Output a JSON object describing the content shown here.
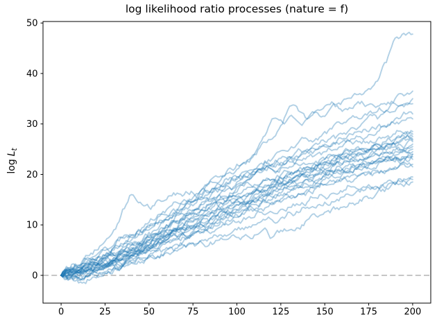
{
  "title": "log likelihood ratio processes (nature = f)",
  "chart_data": {
    "type": "line",
    "title": "log likelihood ratio processes (nature = f)",
    "xlabel": "",
    "ylabel": "log L_t",
    "ylabel_parts": {
      "pre": "log",
      "var": "L",
      "sub": "t"
    },
    "x_ticks": [
      0,
      25,
      50,
      75,
      100,
      125,
      150,
      175,
      200
    ],
    "y_ticks": [
      0,
      10,
      20,
      30,
      40,
      50
    ],
    "xlim": [
      -10.3,
      210.3
    ],
    "ylim": [
      -5.5,
      50.3
    ],
    "grid": false,
    "legend": "none",
    "line_color": "#1f77b4",
    "line_alpha": 0.35,
    "line_width": 1.9,
    "zero_line": {
      "y": 0,
      "style": "dashed",
      "color": "#b4b4b4"
    },
    "control_step": 10,
    "noise_amp": 0.6,
    "x_start": 0,
    "x_end": 200,
    "series": [
      {
        "seed": 101,
        "values": [
          0,
          1.5,
          3,
          5.5,
          8,
          10.5,
          13,
          15,
          17,
          19.5,
          22,
          24,
          31,
          31.5,
          31,
          33.5,
          34.5,
          36,
          38.5,
          47,
          47.8
        ]
      },
      {
        "seed": 202,
        "values": [
          0,
          0.5,
          2,
          3.5,
          6,
          8.5,
          11,
          13.5,
          16,
          18.5,
          21,
          24,
          27,
          33.5,
          31,
          31.5,
          32.5,
          34,
          33.5,
          35,
          36.5
        ]
      },
      {
        "seed": 303,
        "values": [
          0,
          1,
          2.5,
          4,
          5.5,
          7.5,
          10,
          12,
          14.5,
          17,
          19,
          21,
          23,
          25,
          27,
          28.5,
          30,
          31,
          32.5,
          34,
          35
        ]
      },
      {
        "seed": 404,
        "values": [
          0,
          -0.5,
          1,
          3,
          5,
          7,
          9,
          11,
          13,
          15,
          17.5,
          20,
          22,
          23.5,
          25,
          26.5,
          28,
          29.5,
          31,
          32.5,
          34
        ]
      },
      {
        "seed": 505,
        "values": [
          0,
          2,
          5,
          9,
          16,
          13.5,
          15,
          16,
          17,
          18,
          19.5,
          21,
          22,
          23.5,
          24.5,
          25.5,
          26.5,
          27.5,
          28.5,
          30,
          31
        ]
      },
      {
        "seed": 606,
        "values": [
          0,
          1,
          2,
          3,
          5,
          7,
          9.5,
          12,
          14,
          16,
          18,
          20,
          21.5,
          23,
          24.5,
          26,
          27,
          28.5,
          29.5,
          31,
          32
        ]
      },
      {
        "seed": 707,
        "values": [
          0,
          0.5,
          1.5,
          3,
          4.5,
          6,
          8,
          10,
          12,
          13.5,
          15,
          16.5,
          18,
          19.5,
          21,
          22.5,
          24,
          25,
          26,
          27,
          28
        ]
      },
      {
        "seed": 808,
        "values": [
          0,
          1,
          2.5,
          4,
          6,
          7.5,
          9,
          11,
          13,
          14.5,
          16,
          17.5,
          19,
          20,
          21.5,
          23,
          24,
          25,
          26,
          26.8,
          27.5
        ]
      },
      {
        "seed": 909,
        "values": [
          0,
          -1,
          0,
          1.5,
          3.5,
          5.5,
          7.5,
          9,
          11,
          13,
          15,
          16.5,
          18,
          19,
          20.5,
          22,
          23,
          24,
          25,
          26,
          27
        ]
      },
      {
        "seed": 111,
        "values": [
          0,
          0.5,
          2,
          3.5,
          5,
          7,
          8.5,
          10,
          12,
          14,
          15.5,
          17,
          18.5,
          20,
          21,
          22,
          23,
          24,
          25,
          25.8,
          26.5
        ]
      },
      {
        "seed": 222,
        "values": [
          0,
          1.5,
          3,
          4.5,
          6.5,
          8,
          10,
          11.5,
          13,
          15,
          16.5,
          18,
          19,
          20.5,
          21.5,
          22.5,
          23.5,
          24.3,
          25,
          25.5,
          26
        ]
      },
      {
        "seed": 333,
        "values": [
          0,
          0,
          1,
          2.5,
          4,
          6,
          8,
          10,
          11.5,
          13,
          14.5,
          16,
          17.5,
          19,
          20,
          21,
          22,
          23,
          24,
          24.8,
          25.5
        ]
      },
      {
        "seed": 444,
        "values": [
          0,
          1,
          2,
          3,
          4.5,
          6,
          7.5,
          9,
          10.5,
          12.5,
          14,
          15.5,
          17,
          18.5,
          19.5,
          21,
          22,
          23,
          23.8,
          24.5,
          25
        ]
      },
      {
        "seed": 555,
        "values": [
          0,
          -0.5,
          0.5,
          2,
          3.5,
          5,
          7,
          8.5,
          10,
          11.5,
          13,
          14.5,
          16,
          17.5,
          19,
          20,
          21,
          22,
          23,
          23.8,
          24.5
        ]
      },
      {
        "seed": 666,
        "values": [
          0,
          1,
          2.5,
          4,
          5,
          6.5,
          8,
          9.5,
          11,
          12.5,
          14,
          15,
          16.5,
          18,
          19,
          20,
          21,
          22,
          22.8,
          23.5,
          24
        ]
      },
      {
        "seed": 777,
        "values": [
          0,
          0.5,
          1.5,
          3,
          4,
          5.5,
          7,
          8.5,
          10,
          11.5,
          13,
          14.5,
          15.5,
          17,
          18,
          19.5,
          20.5,
          21.5,
          22.3,
          23,
          23.5
        ]
      },
      {
        "seed": 888,
        "values": [
          0,
          1,
          2,
          3,
          4,
          5.5,
          7,
          8,
          9.5,
          11,
          12.5,
          14,
          15,
          16.5,
          17.5,
          19,
          20,
          21,
          21.8,
          22.5,
          23
        ]
      },
      {
        "seed": 999,
        "values": [
          0,
          -1.5,
          -0.5,
          1,
          2.5,
          4,
          5.5,
          7,
          8.5,
          10,
          11.5,
          13,
          14,
          15.5,
          16.5,
          18,
          19,
          20,
          20.8,
          21.5,
          22
        ]
      },
      {
        "seed": 121,
        "values": [
          0,
          0.5,
          1.5,
          2.5,
          4,
          5,
          6.5,
          8,
          9,
          10.5,
          12,
          13,
          14.5,
          15.5,
          17,
          18,
          19,
          19.8,
          20.5,
          21,
          21.5
        ]
      },
      {
        "seed": 232,
        "values": [
          0,
          -0.5,
          0.5,
          1.5,
          2.5,
          3.5,
          4.5,
          6,
          7,
          8,
          9,
          10,
          11,
          12.5,
          13.5,
          14.5,
          15.5,
          16.5,
          17.5,
          18.5,
          19.5
        ]
      },
      {
        "seed": 343,
        "values": [
          0,
          0.5,
          1,
          2,
          3,
          4,
          5,
          6,
          6.5,
          7,
          7.5,
          8,
          7.5,
          9,
          11,
          12.5,
          13.5,
          15,
          16.5,
          18,
          19
        ]
      },
      {
        "seed": 454,
        "values": [
          0,
          1,
          2,
          3,
          4,
          5,
          6.5,
          7.5,
          8.5,
          9.5,
          10.5,
          11.5,
          12.5,
          13.5,
          14.5,
          15.5,
          16.5,
          17,
          17.5,
          18,
          18.5
        ]
      },
      {
        "seed": 565,
        "values": [
          0,
          2,
          4,
          6,
          8,
          10,
          12,
          14,
          15.5,
          17,
          18.5,
          20,
          21,
          22.5,
          23.5,
          24.5,
          25.5,
          26.5,
          27,
          28,
          28.5
        ]
      },
      {
        "seed": 676,
        "values": [
          0,
          1,
          3,
          5,
          7,
          9,
          11,
          13,
          15,
          16,
          15,
          16.5,
          17.5,
          18.5,
          19.5,
          20.5,
          21,
          22,
          22.5,
          23.5,
          24
        ]
      },
      {
        "seed": 787,
        "values": [
          0,
          1.5,
          3.5,
          5.5,
          7.5,
          9.5,
          11.5,
          13.5,
          15.5,
          17.5,
          19.5,
          20.5,
          21,
          21.5,
          22,
          23,
          24,
          25,
          25.5,
          26,
          26.8
        ]
      }
    ]
  }
}
